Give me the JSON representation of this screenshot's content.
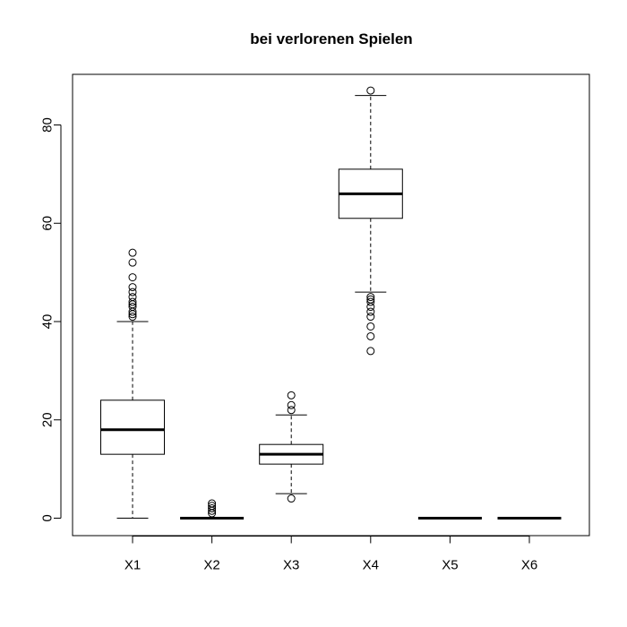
{
  "chart_data": {
    "type": "boxplot",
    "title": "bei verlorenen Spielen",
    "xlabel": "",
    "ylabel": "",
    "ylim": [
      -3.5,
      90
    ],
    "yticks": [
      0,
      20,
      40,
      60,
      80
    ],
    "categories": [
      "X1",
      "X2",
      "X3",
      "X4",
      "X5",
      "X6"
    ],
    "boxes": [
      {
        "category": "X1",
        "lower_whisker": 0,
        "q1": 13,
        "median": 18,
        "q3": 24,
        "upper_whisker": 40,
        "outliers": [
          41,
          41.5,
          42,
          43,
          43.5,
          44,
          45,
          46,
          47,
          49,
          52,
          54
        ]
      },
      {
        "category": "X2",
        "lower_whisker": 0,
        "q1": 0,
        "median": 0,
        "q3": 0,
        "upper_whisker": 0,
        "outliers": [
          1,
          1.5,
          2,
          2.5,
          3
        ]
      },
      {
        "category": "X3",
        "lower_whisker": 5,
        "q1": 11,
        "median": 13,
        "q3": 15,
        "upper_whisker": 21,
        "outliers": [
          4,
          22,
          23,
          25
        ]
      },
      {
        "category": "X4",
        "lower_whisker": 46,
        "q1": 61,
        "median": 66,
        "q3": 71,
        "upper_whisker": 86,
        "outliers": [
          87,
          45,
          44.5,
          44,
          43,
          42,
          41,
          39,
          37,
          34
        ]
      },
      {
        "category": "X5",
        "lower_whisker": 0,
        "q1": 0,
        "median": 0,
        "q3": 0,
        "upper_whisker": 0,
        "outliers": []
      },
      {
        "category": "X6",
        "lower_whisker": 0,
        "q1": 0,
        "median": 0,
        "q3": 0,
        "upper_whisker": 0,
        "outliers": []
      }
    ],
    "grid": false,
    "legend": "none"
  }
}
